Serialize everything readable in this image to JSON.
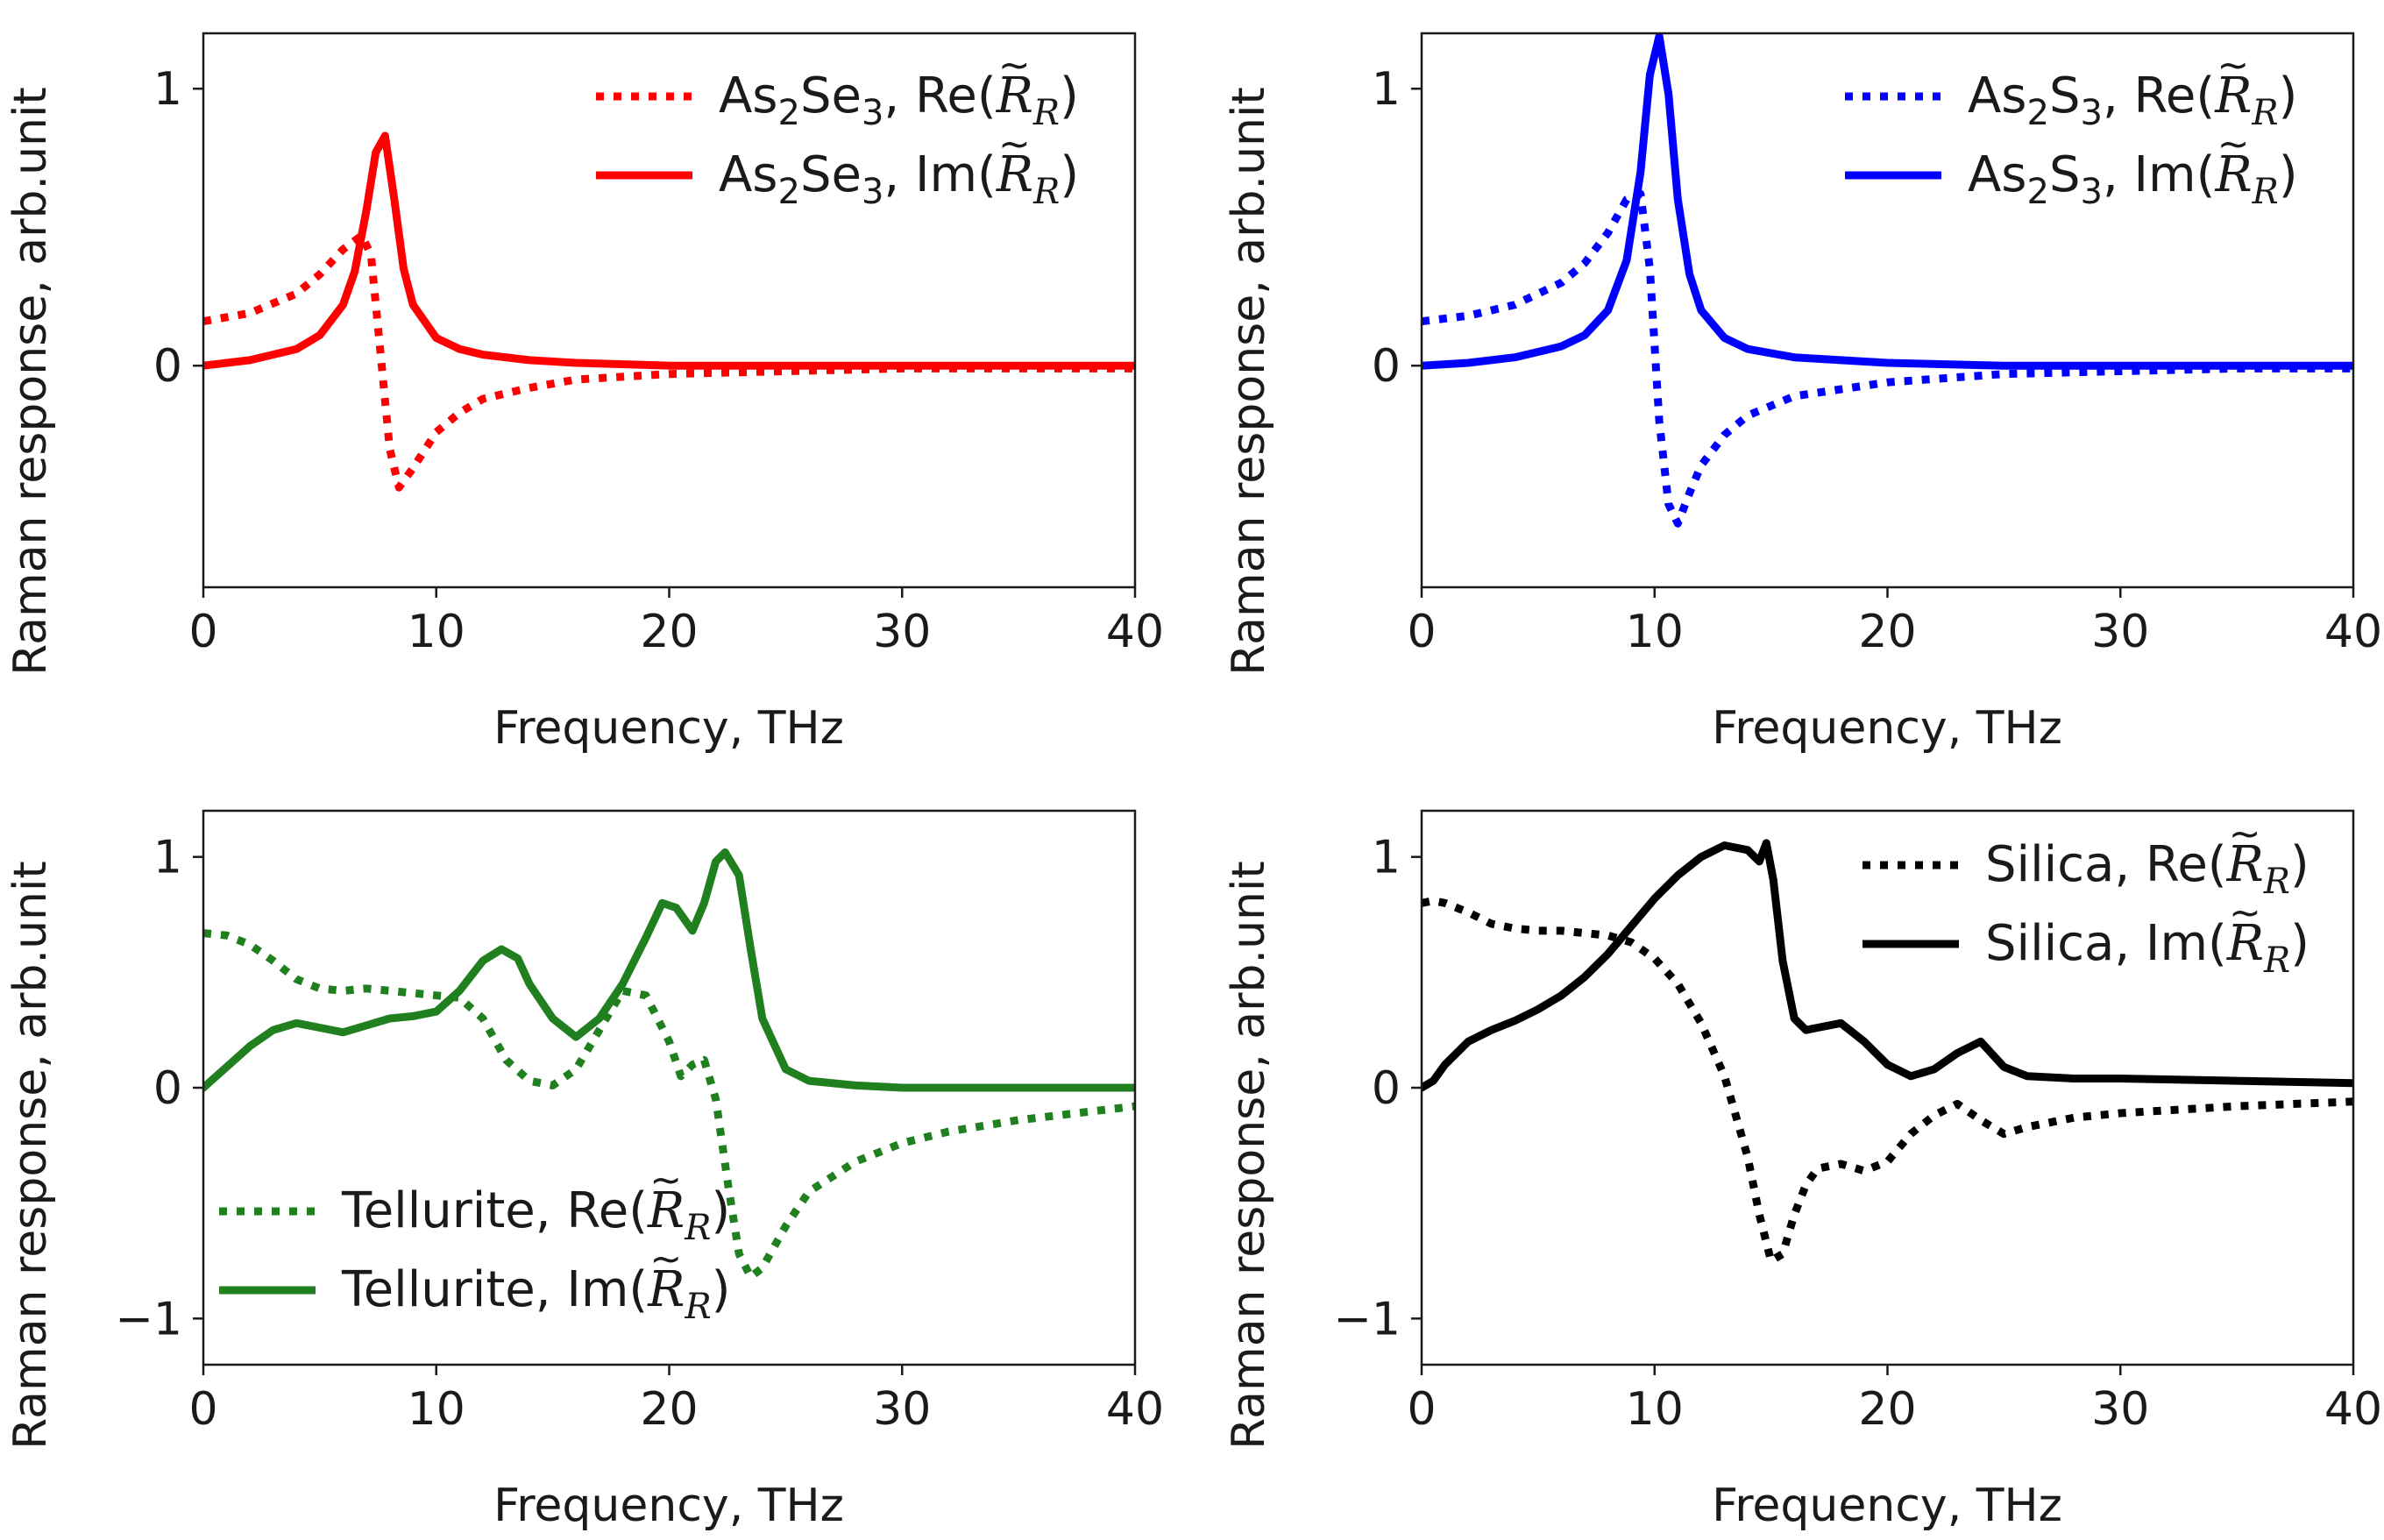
{
  "figure": {
    "description_panels": 4
  },
  "chart_data": [
    {
      "type": "line",
      "xlabel": "Frequency, THz",
      "ylabel": "Raman  response, arb.unit",
      "xlim": [
        0,
        40
      ],
      "ylim": [
        -0.8,
        1.2
      ],
      "xticks": [
        0,
        10,
        20,
        30,
        40
      ],
      "xtick_labels": [
        "0",
        "10",
        "20",
        "30",
        "40"
      ],
      "yticks": [
        0,
        1
      ],
      "ytick_labels": [
        "0",
        "1"
      ],
      "legend_position": "top-right",
      "series": [
        {
          "name": "As2Se3, Re(R̃_R)",
          "legend_prefix": "As",
          "legend_sub1": "2",
          "legend_mid": "Se",
          "legend_sub2": "3",
          "legend_part": ", Re(",
          "style": "dotted",
          "color": "#ff0000",
          "x": [
            0,
            2,
            4,
            5,
            6,
            6.8,
            7.2,
            7.6,
            8.0,
            8.4,
            9,
            10,
            11,
            12,
            14,
            16,
            20,
            25,
            30,
            35,
            40
          ],
          "y": [
            0.16,
            0.19,
            0.26,
            0.33,
            0.42,
            0.47,
            0.4,
            0.05,
            -0.3,
            -0.44,
            -0.37,
            -0.24,
            -0.17,
            -0.12,
            -0.08,
            -0.05,
            -0.03,
            -0.02,
            -0.01,
            -0.01,
            -0.01
          ]
        },
        {
          "name": "As2Se3, Im(R̃_R)",
          "legend_prefix": "As",
          "legend_sub1": "2",
          "legend_mid": "Se",
          "legend_sub2": "3",
          "legend_part": ", Im(",
          "style": "solid",
          "color": "#ff0000",
          "x": [
            0,
            2,
            4,
            5,
            6,
            6.5,
            7.0,
            7.4,
            7.8,
            8.2,
            8.6,
            9,
            10,
            11,
            12,
            14,
            16,
            20,
            25,
            30,
            35,
            40
          ],
          "y": [
            0.0,
            0.02,
            0.06,
            0.11,
            0.22,
            0.34,
            0.56,
            0.77,
            0.83,
            0.6,
            0.35,
            0.22,
            0.1,
            0.06,
            0.04,
            0.02,
            0.01,
            0.0,
            0.0,
            0.0,
            0.0,
            0.0
          ]
        }
      ]
    },
    {
      "type": "line",
      "xlabel": "Frequency, THz",
      "ylabel": "Raman  response, arb.unit",
      "xlim": [
        0,
        40
      ],
      "ylim": [
        -0.8,
        1.2
      ],
      "xticks": [
        0,
        10,
        20,
        30,
        40
      ],
      "xtick_labels": [
        "0",
        "10",
        "20",
        "30",
        "40"
      ],
      "yticks": [
        0,
        1
      ],
      "ytick_labels": [
        "0",
        "1"
      ],
      "legend_position": "top-right",
      "series": [
        {
          "name": "As2S3, Re(R̃_R)",
          "legend_prefix": "As",
          "legend_sub1": "2",
          "legend_mid": "S",
          "legend_sub2": "3",
          "legend_part": ", Re(",
          "style": "dotted",
          "color": "#0000ff",
          "x": [
            0,
            2,
            4,
            6,
            7,
            8,
            8.8,
            9.4,
            9.8,
            10.2,
            10.6,
            11.0,
            11.5,
            12,
            13,
            14,
            16,
            20,
            25,
            30,
            35,
            40
          ],
          "y": [
            0.16,
            0.18,
            0.22,
            0.3,
            0.37,
            0.48,
            0.6,
            0.62,
            0.35,
            -0.2,
            -0.5,
            -0.57,
            -0.46,
            -0.36,
            -0.25,
            -0.18,
            -0.11,
            -0.06,
            -0.03,
            -0.02,
            -0.01,
            -0.01
          ]
        },
        {
          "name": "As2S3, Im(R̃_R)",
          "legend_prefix": "As",
          "legend_sub1": "2",
          "legend_mid": "S",
          "legend_sub2": "3",
          "legend_part": ", Im(",
          "style": "solid",
          "color": "#0000ff",
          "x": [
            0,
            2,
            4,
            6,
            7,
            8,
            8.8,
            9.4,
            9.8,
            10.2,
            10.6,
            11.0,
            11.5,
            12,
            13,
            14,
            16,
            20,
            25,
            30,
            35,
            40
          ],
          "y": [
            0.0,
            0.01,
            0.03,
            0.07,
            0.11,
            0.2,
            0.38,
            0.7,
            1.05,
            1.19,
            0.98,
            0.6,
            0.33,
            0.2,
            0.1,
            0.06,
            0.03,
            0.01,
            0.0,
            0.0,
            0.0,
            0.0
          ]
        }
      ]
    },
    {
      "type": "line",
      "xlabel": "Frequency, THz",
      "ylabel": "Raman  response, arb.unit",
      "xlim": [
        0,
        40
      ],
      "ylim": [
        -1.2,
        1.2
      ],
      "xticks": [
        0,
        10,
        20,
        30,
        40
      ],
      "xtick_labels": [
        "0",
        "10",
        "20",
        "30",
        "40"
      ],
      "yticks": [
        -1,
        0,
        1
      ],
      "ytick_labels": [
        "−1",
        "0",
        "1"
      ],
      "legend_position": "bottom-left",
      "series": [
        {
          "name": "Tellurite, Re(R̃_R)",
          "legend_prefix": "Tellurite",
          "legend_part": ", Re(",
          "style": "dotted",
          "color": "#208020",
          "x": [
            0,
            1,
            2,
            3,
            4,
            5,
            6,
            7,
            8,
            9,
            10,
            11,
            12,
            13,
            14,
            15,
            16,
            17,
            18,
            19,
            20,
            20.5,
            21,
            21.5,
            22,
            22.5,
            23,
            23.5,
            24,
            25,
            26,
            28,
            30,
            32,
            35,
            40
          ],
          "y": [
            0.67,
            0.66,
            0.62,
            0.55,
            0.47,
            0.43,
            0.42,
            0.43,
            0.42,
            0.41,
            0.4,
            0.39,
            0.3,
            0.12,
            0.03,
            0.01,
            0.08,
            0.25,
            0.42,
            0.4,
            0.2,
            0.05,
            0.1,
            0.12,
            -0.05,
            -0.4,
            -0.72,
            -0.82,
            -0.78,
            -0.6,
            -0.45,
            -0.32,
            -0.24,
            -0.19,
            -0.14,
            -0.08
          ]
        },
        {
          "name": "Tellurite, Im(R̃_R)",
          "legend_prefix": "Tellurite",
          "legend_part": ", Im(",
          "style": "solid",
          "color": "#208020",
          "x": [
            0,
            1,
            2,
            3,
            4,
            5,
            6,
            7,
            8,
            9,
            10,
            11,
            12,
            12.8,
            13.5,
            14,
            15,
            16,
            17,
            18,
            19,
            19.7,
            20.3,
            21,
            21.5,
            22,
            22.4,
            23,
            23.5,
            24,
            25,
            26,
            28,
            30,
            35,
            40
          ],
          "y": [
            0.0,
            0.09,
            0.18,
            0.25,
            0.28,
            0.26,
            0.24,
            0.27,
            0.3,
            0.31,
            0.33,
            0.42,
            0.55,
            0.6,
            0.56,
            0.45,
            0.3,
            0.22,
            0.3,
            0.45,
            0.65,
            0.8,
            0.78,
            0.68,
            0.8,
            0.98,
            1.02,
            0.92,
            0.6,
            0.3,
            0.08,
            0.03,
            0.01,
            0.0,
            0.0,
            0.0
          ]
        }
      ]
    },
    {
      "type": "line",
      "xlabel": "Frequency, THz",
      "ylabel": "Raman  response, arb.unit",
      "xlim": [
        0,
        40
      ],
      "ylim": [
        -1.2,
        1.2
      ],
      "xticks": [
        0,
        10,
        20,
        30,
        40
      ],
      "xtick_labels": [
        "0",
        "10",
        "20",
        "30",
        "40"
      ],
      "yticks": [
        -1,
        0,
        1
      ],
      "ytick_labels": [
        "−1",
        "0",
        "1"
      ],
      "legend_position": "top-right",
      "series": [
        {
          "name": "Silica, Re(R̃_R)",
          "legend_prefix": "Silica",
          "legend_part": ", Re(",
          "style": "dotted",
          "color": "#000000",
          "x": [
            0,
            0.5,
            1,
            2,
            3,
            4,
            5,
            6,
            7,
            8,
            9,
            10,
            11,
            12,
            13,
            14,
            14.5,
            15,
            15.5,
            16,
            16.5,
            17,
            18,
            19,
            20,
            21,
            22,
            23,
            24,
            25,
            26,
            28,
            30,
            35,
            40
          ],
          "y": [
            0.8,
            0.81,
            0.8,
            0.76,
            0.71,
            0.69,
            0.68,
            0.68,
            0.67,
            0.66,
            0.63,
            0.56,
            0.45,
            0.28,
            0.05,
            -0.3,
            -0.55,
            -0.75,
            -0.72,
            -0.55,
            -0.42,
            -0.35,
            -0.33,
            -0.36,
            -0.32,
            -0.2,
            -0.12,
            -0.07,
            -0.14,
            -0.2,
            -0.17,
            -0.13,
            -0.11,
            -0.08,
            -0.06
          ]
        },
        {
          "name": "Silica, Im(R̃_R)",
          "legend_prefix": "Silica",
          "legend_part": ", Im(",
          "style": "solid",
          "color": "#000000",
          "x": [
            0,
            0.5,
            1,
            2,
            3,
            4,
            5,
            6,
            7,
            8,
            9,
            10,
            11,
            12,
            13,
            14,
            14.5,
            14.8,
            15.1,
            15.5,
            16,
            16.5,
            17,
            18,
            19,
            20,
            21,
            22,
            23,
            24,
            25,
            26,
            28,
            30,
            35,
            40
          ],
          "y": [
            0.0,
            0.03,
            0.1,
            0.2,
            0.25,
            0.29,
            0.34,
            0.4,
            0.48,
            0.58,
            0.7,
            0.82,
            0.92,
            1.0,
            1.05,
            1.03,
            0.98,
            1.06,
            0.9,
            0.55,
            0.3,
            0.25,
            0.26,
            0.28,
            0.2,
            0.1,
            0.05,
            0.08,
            0.15,
            0.2,
            0.09,
            0.05,
            0.04,
            0.04,
            0.03,
            0.02
          ]
        }
      ]
    }
  ]
}
